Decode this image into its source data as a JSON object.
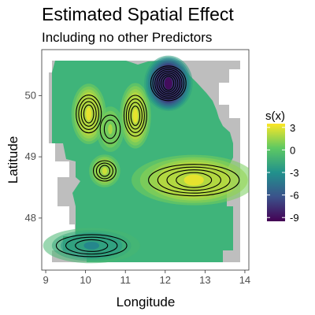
{
  "chart_data": {
    "type": "heatmap",
    "title": "Estimated Spatial Effect",
    "subtitle": "Including no other Predictors",
    "xlabel": "Longitude",
    "ylabel": "Latitude",
    "x_ticks": [
      "9",
      "10",
      "11",
      "12",
      "13",
      "14"
    ],
    "y_ticks": [
      "48",
      "49",
      "50"
    ],
    "xlim": [
      8.9,
      14.1
    ],
    "ylim": [
      47.15,
      50.75
    ],
    "grid": false,
    "legend": {
      "title": "s(x)",
      "position": "right",
      "ticks": [
        "3",
        "0",
        "-3",
        "-6",
        "-9"
      ],
      "range": [
        -9.5,
        3.5
      ],
      "colors": [
        "#440154",
        "#3b528b",
        "#21918c",
        "#5ec962",
        "#fde725"
      ]
    },
    "region_fill": "#bebebe",
    "peaks": [
      {
        "lon": 10.08,
        "lat": 49.7,
        "value": 3.0
      },
      {
        "lon": 11.25,
        "lat": 49.67,
        "value": 3.0
      },
      {
        "lon": 10.62,
        "lat": 49.45,
        "value": 1.8
      },
      {
        "lon": 10.48,
        "lat": 48.77,
        "value": 2.5
      },
      {
        "lon": 12.72,
        "lat": 48.62,
        "value": 3.0
      },
      {
        "lon": 12.08,
        "lat": 50.2,
        "value": -9.0
      },
      {
        "lon": 10.15,
        "lat": 47.55,
        "value": -3.5
      }
    ]
  }
}
